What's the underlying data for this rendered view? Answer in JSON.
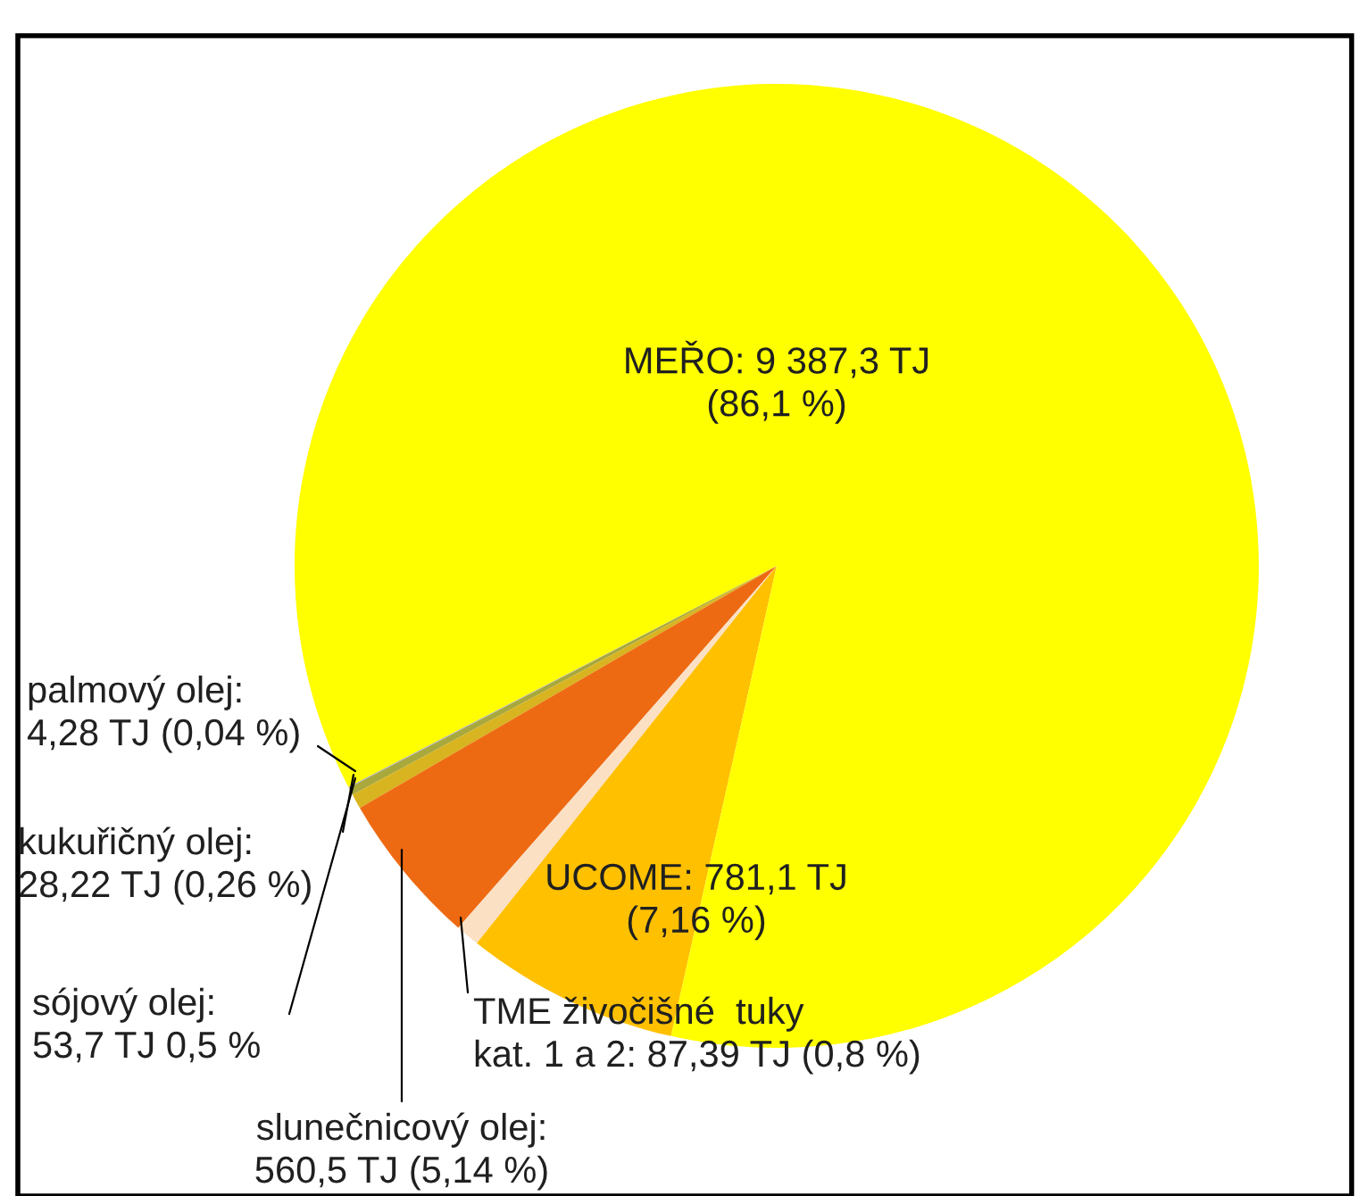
{
  "chart_data": {
    "type": "pie",
    "categories": [
      "palmový olej",
      "kukuřičný olej",
      "sójový olej",
      "slunečnicový olej",
      "TME živočišné  tuky\nkat. 1 a 2",
      "UCOME",
      "MEŘO"
    ],
    "values": [
      4.28,
      28.22,
      53.7,
      560.5,
      87.39,
      781.1,
      9387.3
    ],
    "colors": [
      "#a4a4c8",
      "#a8a83c",
      "#d8b420",
      "#ee6a12",
      "#fbe0c4",
      "#ffc000",
      "#ffff00"
    ],
    "value_labels": [
      ":\n4,28 TJ (0,04 %)",
      ":\n28,22 TJ (0,26 %)",
      ":\n53,7 TJ 0,5 %",
      ":\n560,5 TJ (5,14 %)",
      ": 87,39 TJ (0,8 %)",
      ": 781,1 TJ\n(7,16 %)",
      ": 9 387,3 TJ\n(86,1 %)"
    ],
    "legend": false
  }
}
